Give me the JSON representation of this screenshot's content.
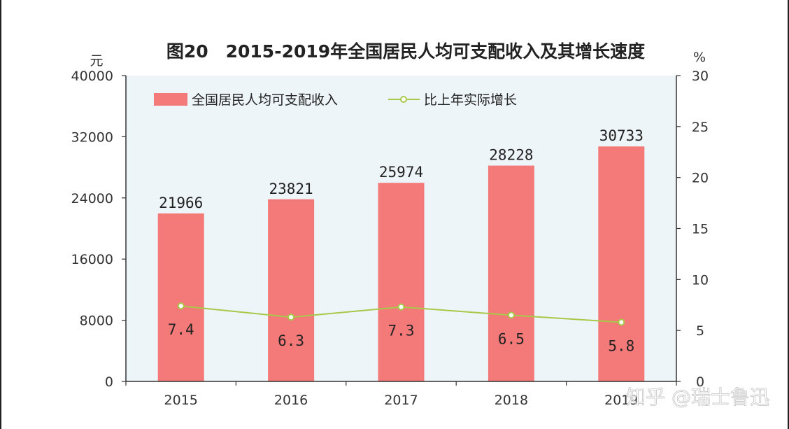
{
  "chart_data": {
    "type": "bar",
    "title": "图20　2015-2019年全国居民人均可支配收入及其增长速度",
    "categories": [
      "2015",
      "2016",
      "2017",
      "2018",
      "2019"
    ],
    "y_left_unit": "元",
    "y_right_unit": "%",
    "ylim_left": [
      0,
      40000
    ],
    "ylim_right": [
      0,
      30
    ],
    "y_left_ticks": [
      "0",
      "8000",
      "16000",
      "24000",
      "32000",
      "40000"
    ],
    "y_right_ticks": [
      "0",
      "5",
      "10",
      "15",
      "20",
      "25",
      "30"
    ],
    "series": [
      {
        "name": "全国居民人均可支配收入",
        "type": "bar",
        "axis": "left",
        "color": "#f47a7a",
        "values": [
          21966,
          23821,
          25974,
          28228,
          30733
        ],
        "labels": [
          "21966",
          "23821",
          "25974",
          "28228",
          "30733"
        ]
      },
      {
        "name": "比上年实际增长",
        "type": "line",
        "axis": "right",
        "color": "#a8c84a",
        "values": [
          7.4,
          6.3,
          7.3,
          6.5,
          5.8
        ],
        "labels": [
          "7.4",
          "6.3",
          "7.3",
          "6.5",
          "5.8"
        ]
      }
    ],
    "grid": false,
    "legend_position": "top-left",
    "plot_background": "#eef5f8"
  },
  "watermark": "知乎 @瑞士鲁迅"
}
